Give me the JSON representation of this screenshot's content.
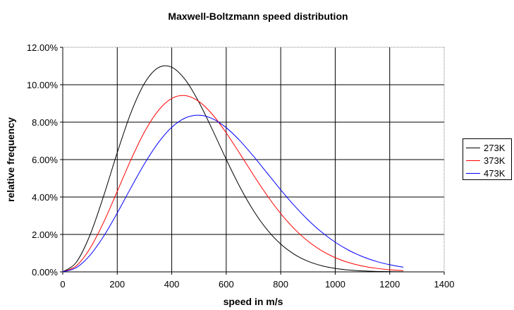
{
  "chart_data": {
    "type": "line",
    "title": "Maxwell-Boltzmann speed distribution",
    "xlabel": "speed in m/s",
    "ylabel": "relative frequency",
    "xlim": [
      0,
      1400
    ],
    "ylim": [
      0,
      12
    ],
    "xticks": [
      0,
      200,
      400,
      600,
      800,
      1000,
      1200,
      1400
    ],
    "xtick_labels": [
      "0",
      "200",
      "400",
      "600",
      "800",
      "1000",
      "1200",
      "1400"
    ],
    "yticks": [
      0,
      2,
      4,
      6,
      8,
      10,
      12
    ],
    "ytick_labels": [
      "0.00%",
      "2.00%",
      "4.00%",
      "6.00%",
      "8.00%",
      "10.00%",
      "12.00%"
    ],
    "grid": true,
    "legend_position": "right",
    "x": [
      0,
      50,
      100,
      150,
      200,
      250,
      300,
      350,
      400,
      450,
      500,
      550,
      600,
      650,
      700,
      750,
      800,
      850,
      900,
      950,
      1000,
      1050,
      1100,
      1150,
      1200,
      1250
    ],
    "series": [
      {
        "name": "273K",
        "color": "#000000",
        "values": [
          0,
          0.519,
          1.967,
          4.054,
          6.37,
          8.494,
          10.077,
          10.907,
          10.937,
          10.26,
          9.062,
          7.573,
          6.012,
          4.542,
          3.273,
          2.255,
          1.485,
          0.938,
          0.567,
          0.329,
          0.184,
          0.098,
          0.051,
          0.025,
          0.012,
          0.005
        ]
      },
      {
        "name": "373K",
        "color": "#ff0000",
        "values": [
          0,
          0.326,
          1.256,
          2.648,
          4.302,
          5.985,
          7.48,
          8.608,
          9.266,
          9.419,
          9.102,
          8.401,
          7.43,
          6.318,
          5.174,
          4.085,
          3.116,
          2.299,
          1.64,
          1.135,
          0.76,
          0.494,
          0.311,
          0.191,
          0.113,
          0.065
        ]
      },
      {
        "name": "473K",
        "color": "#0000ff",
        "values": [
          0,
          0.229,
          0.889,
          1.901,
          3.147,
          4.488,
          5.778,
          6.89,
          7.726,
          8.227,
          8.371,
          8.181,
          7.705,
          7.012,
          6.18,
          5.283,
          4.386,
          3.539,
          2.779,
          2.126,
          1.585,
          1.151,
          0.816,
          0.564,
          0.381,
          0.251
        ]
      }
    ]
  }
}
